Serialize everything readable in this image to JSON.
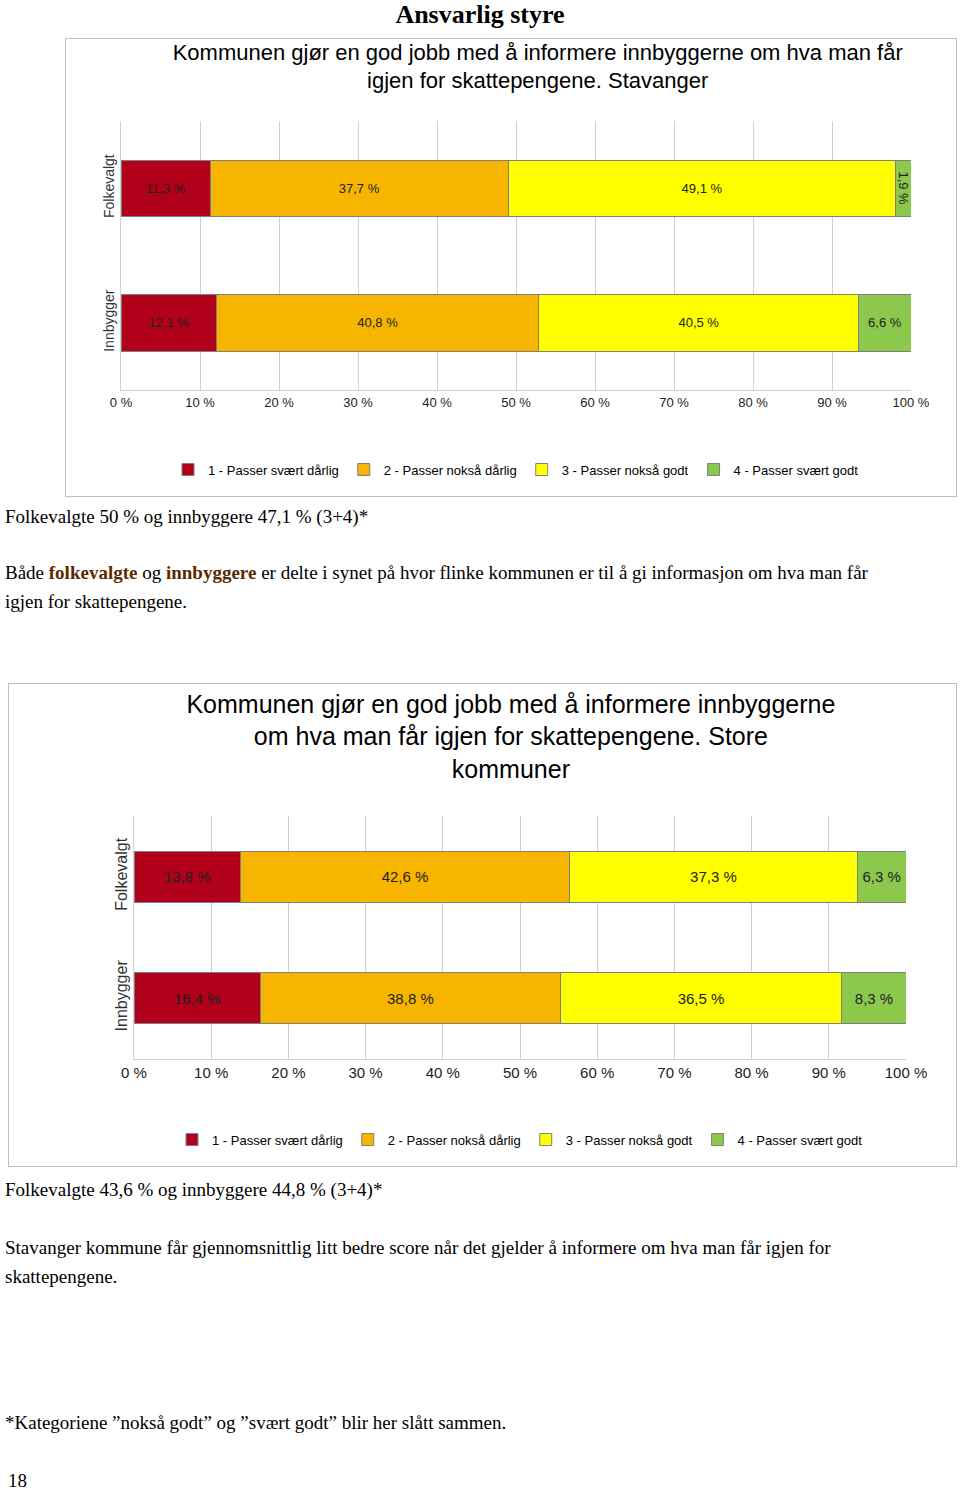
{
  "heading": "Ansvarlig styre",
  "chart_data": [
    {
      "type": "bar",
      "orientation": "horizontal",
      "stacked": true,
      "title": "Kommunen gjør en god jobb med å informere innbyggerne om hva man får igjen for skattepengene. Stavanger",
      "categories": [
        "Folkevalgt",
        "Innbygger"
      ],
      "series": [
        {
          "name": "1 - Passer svært dårlig",
          "color": "#b0001a",
          "values": [
            11.3,
            12.1
          ],
          "value_labels": [
            "11,3 %",
            "12,1 %"
          ]
        },
        {
          "name": "2 - Passer nokså dårlig",
          "color": "#f7b500",
          "values": [
            37.7,
            40.8
          ],
          "value_labels": [
            "37,7 %",
            "40,8 %"
          ]
        },
        {
          "name": "3 - Passer nokså godt",
          "color": "#ffff00",
          "values": [
            49.1,
            40.5
          ],
          "value_labels": [
            "49,1 %",
            "40,5 %"
          ]
        },
        {
          "name": "4 - Passer svært godt",
          "color": "#8cc84b",
          "values": [
            1.9,
            6.6
          ],
          "value_labels": [
            "1,9 %",
            "6,6 %"
          ]
        }
      ],
      "xlim": [
        0,
        100
      ],
      "xticks": [
        {
          "value": 0,
          "label": "0 %"
        },
        {
          "value": 10,
          "label": "10 %"
        },
        {
          "value": 20,
          "label": "20 %"
        },
        {
          "value": 30,
          "label": "30 %"
        },
        {
          "value": 40,
          "label": "40 %"
        },
        {
          "value": 50,
          "label": "50 %"
        },
        {
          "value": 60,
          "label": "60 %"
        },
        {
          "value": 70,
          "label": "70 %"
        },
        {
          "value": 80,
          "label": "80 %"
        },
        {
          "value": 90,
          "label": "90 %"
        },
        {
          "value": 100,
          "label": "100 %"
        }
      ],
      "grid": true,
      "data_labels": true,
      "legend": "bottom"
    },
    {
      "type": "bar",
      "orientation": "horizontal",
      "stacked": true,
      "title": "Kommunen gjør en god jobb med å informere innbyggerne om hva man får igjen for skattepengene. Store kommuner",
      "categories": [
        "Folkevalgt",
        "Innbygger"
      ],
      "series": [
        {
          "name": "1 - Passer svært dårlig",
          "color": "#b0001a",
          "values": [
            13.8,
            16.4
          ],
          "value_labels": [
            "13,8 %",
            "16,4 %"
          ]
        },
        {
          "name": "2 - Passer nokså dårlig",
          "color": "#f7b500",
          "values": [
            42.6,
            38.8
          ],
          "value_labels": [
            "42,6 %",
            "38,8 %"
          ]
        },
        {
          "name": "3 - Passer nokså godt",
          "color": "#ffff00",
          "values": [
            37.3,
            36.5
          ],
          "value_labels": [
            "37,3 %",
            "36,5 %"
          ]
        },
        {
          "name": "4 - Passer svært godt",
          "color": "#8cc84b",
          "values": [
            6.3,
            8.3
          ],
          "value_labels": [
            "6,3 %",
            "8,3 %"
          ]
        }
      ],
      "xlim": [
        0,
        100
      ],
      "xticks": [
        {
          "value": 0,
          "label": "0 %"
        },
        {
          "value": 10,
          "label": "10 %"
        },
        {
          "value": 20,
          "label": "20 %"
        },
        {
          "value": 30,
          "label": "30 %"
        },
        {
          "value": 40,
          "label": "40 %"
        },
        {
          "value": 50,
          "label": "50 %"
        },
        {
          "value": 60,
          "label": "60 %"
        },
        {
          "value": 70,
          "label": "70 %"
        },
        {
          "value": 80,
          "label": "80 %"
        },
        {
          "value": 90,
          "label": "90 %"
        },
        {
          "value": 100,
          "label": "100 %"
        }
      ],
      "grid": true,
      "data_labels": true,
      "legend": "bottom"
    }
  ],
  "notes": [
    {
      "summary": "Folkevalgte 50 % og innbyggere 47,1 % (3+4)*",
      "paragraph": [
        {
          "text": "Både "
        },
        {
          "text": "folkevalgte",
          "bold": true
        },
        {
          "text": " og "
        },
        {
          "text": "innbyggere",
          "bold": true
        },
        {
          "text": " er delte i synet på hvor flinke kommunen er til å gi informasjon om hva man får igjen for skattepengene."
        }
      ]
    },
    {
      "summary": "Folkevalgte 43,6 % og innbyggere 44,8 % (3+4)*",
      "paragraph": [
        {
          "text": "Stavanger kommune får gjennomsnittlig litt bedre score når det gjelder å informere om hva man får igjen for skattepengene."
        }
      ]
    }
  ],
  "footnote": "*Kategoriene ”nokså godt” og ”svært godt” blir her slått sammen.",
  "page_number": 18
}
